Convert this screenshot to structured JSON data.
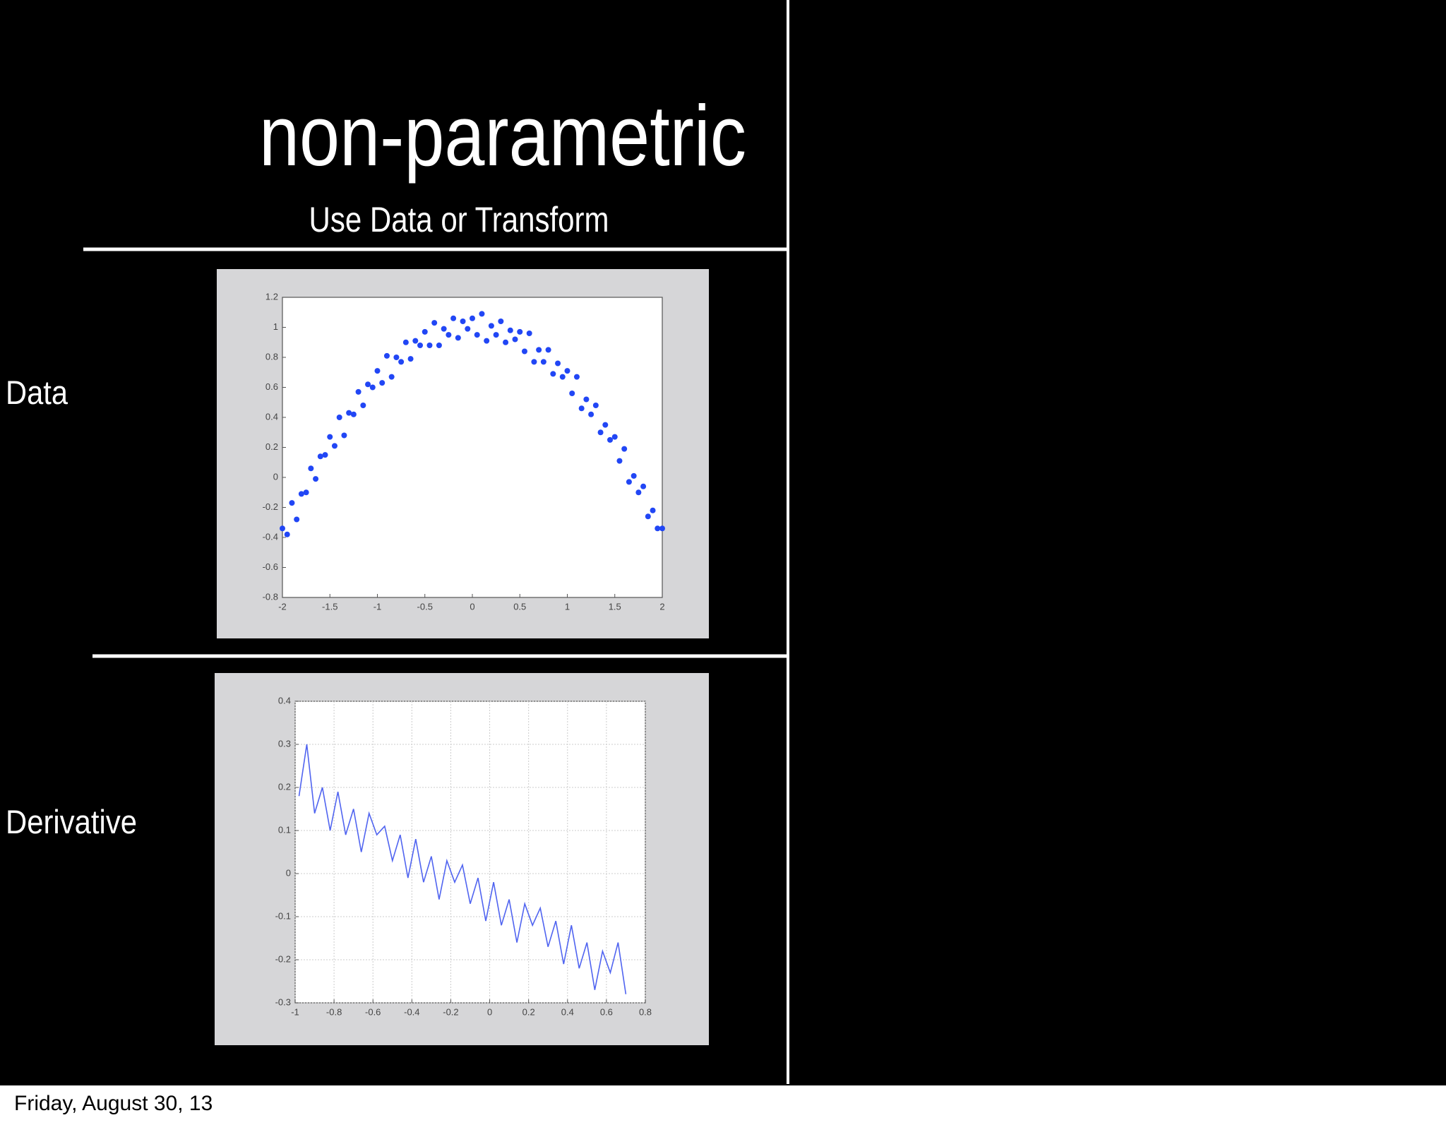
{
  "slide": {
    "title": "non-parametric",
    "subtitle": "Use Data or Transform",
    "row_labels": [
      "Data",
      "Derivative"
    ],
    "footer": "Friday, August 30, 13"
  },
  "chart_data": [
    {
      "type": "scatter",
      "color": "#2146f5",
      "grid": false,
      "xlim": [
        -2,
        2
      ],
      "xticks": [
        -2,
        -1.5,
        -1,
        -0.5,
        0,
        0.5,
        1,
        1.5,
        2
      ],
      "ylim": [
        -0.8,
        1.2
      ],
      "yticks": [
        -0.8,
        -0.6,
        -0.4,
        -0.2,
        0,
        0.2,
        0.4,
        0.6,
        0.8,
        1,
        1.2
      ],
      "x": [
        -2,
        -1.95,
        -1.9,
        -1.85,
        -1.8,
        -1.75,
        -1.7,
        -1.65,
        -1.6,
        -1.55,
        -1.5,
        -1.45,
        -1.4,
        -1.35,
        -1.3,
        -1.25,
        -1.2,
        -1.15,
        -1.1,
        -1.05,
        -1,
        -0.95,
        -0.9,
        -0.85,
        -0.8,
        -0.75,
        -0.7,
        -0.65,
        -0.6,
        -0.55,
        -0.5,
        -0.45,
        -0.4,
        -0.35,
        -0.3,
        -0.25,
        -0.2,
        -0.15,
        -0.1,
        -0.05,
        0,
        0.05,
        0.1,
        0.15,
        0.2,
        0.25,
        0.3,
        0.35,
        0.4,
        0.45,
        0.5,
        0.55,
        0.6,
        0.65,
        0.7,
        0.75,
        0.8,
        0.85,
        0.9,
        0.95,
        1,
        1.05,
        1.1,
        1.15,
        1.2,
        1.25,
        1.3,
        1.35,
        1.4,
        1.45,
        1.5,
        1.55,
        1.6,
        1.65,
        1.7,
        1.75,
        1.8,
        1.85,
        1.9,
        1.95,
        2
      ],
      "values": [
        -0.34,
        -0.38,
        -0.17,
        -0.28,
        -0.11,
        -0.1,
        0.06,
        -0.01,
        0.14,
        0.15,
        0.27,
        0.21,
        0.4,
        0.28,
        0.43,
        0.42,
        0.57,
        0.48,
        0.62,
        0.6,
        0.71,
        0.63,
        0.81,
        0.67,
        0.8,
        0.77,
        0.9,
        0.79,
        0.91,
        0.88,
        0.97,
        0.88,
        1.03,
        0.88,
        0.99,
        0.95,
        1.06,
        0.93,
        1.04,
        0.99,
        1.06,
        0.95,
        1.09,
        0.91,
        1.01,
        0.95,
        1.04,
        0.9,
        0.98,
        0.92,
        0.97,
        0.84,
        0.96,
        0.77,
        0.85,
        0.77,
        0.85,
        0.69,
        0.76,
        0.67,
        0.71,
        0.56,
        0.67,
        0.46,
        0.52,
        0.42,
        0.48,
        0.3,
        0.35,
        0.25,
        0.27,
        0.11,
        0.19,
        -0.03,
        0.01,
        -0.1,
        -0.06,
        -0.26,
        -0.22,
        -0.34,
        -0.34
      ]
    },
    {
      "type": "line",
      "color": "#5064f0",
      "grid": true,
      "xlim": [
        -1,
        0.8
      ],
      "xticks": [
        -1,
        -0.8,
        -0.6,
        -0.4,
        -0.2,
        0,
        0.2,
        0.4,
        0.6,
        0.8
      ],
      "ylim": [
        -0.3,
        0.4
      ],
      "yticks": [
        -0.3,
        -0.2,
        -0.1,
        0,
        0.1,
        0.2,
        0.3,
        0.4
      ],
      "x": [
        -0.98,
        -0.94,
        -0.9,
        -0.86,
        -0.82,
        -0.78,
        -0.74,
        -0.7,
        -0.66,
        -0.62,
        -0.58,
        -0.54,
        -0.5,
        -0.46,
        -0.42,
        -0.38,
        -0.34,
        -0.3,
        -0.26,
        -0.22,
        -0.18,
        -0.14,
        -0.1,
        -0.06,
        -0.02,
        0.02,
        0.06,
        0.1,
        0.14,
        0.18,
        0.22,
        0.26,
        0.3,
        0.34,
        0.38,
        0.42,
        0.46,
        0.5,
        0.54,
        0.58,
        0.62,
        0.66,
        0.7
      ],
      "values": [
        0.18,
        0.3,
        0.14,
        0.2,
        0.1,
        0.19,
        0.09,
        0.15,
        0.05,
        0.14,
        0.09,
        0.11,
        0.03,
        0.09,
        -0.01,
        0.08,
        -0.02,
        0.04,
        -0.06,
        0.03,
        -0.02,
        0.02,
        -0.07,
        -0.01,
        -0.11,
        -0.02,
        -0.12,
        -0.06,
        -0.16,
        -0.07,
        -0.12,
        -0.08,
        -0.17,
        -0.11,
        -0.21,
        -0.12,
        -0.22,
        -0.16,
        -0.27,
        -0.18,
        -0.23,
        -0.16,
        -0.28
      ]
    }
  ]
}
